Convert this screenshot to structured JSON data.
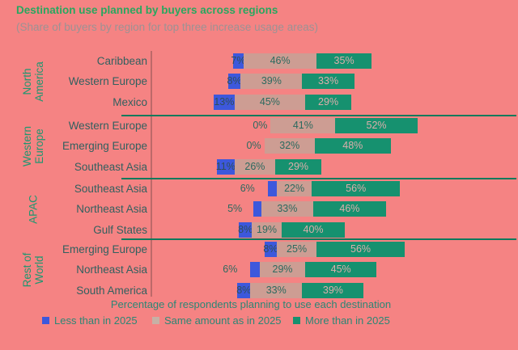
{
  "title": "Destination use planned by buyers across regions",
  "subtitle": "(Share of buyers by region for top three increase usage areas)",
  "colors": {
    "background": "#f58383",
    "less_blue": "#3d58dc",
    "same_tan": "#cd9d93",
    "more_teal": "#16916f",
    "title_green": "#29a75f",
    "subtitle_gray": "#9c9294",
    "category_text": "#31605f",
    "group_text": "#1d9770",
    "label_on_tan": "#2b6a5f",
    "label_on_teal": "#dcaeab",
    "label_on_blue": "#2f4e57",
    "separator": "#0d7a5c",
    "legend_text": "#2b8775",
    "legend_tan_swatch": "#c7b0a5"
  },
  "chart_data": {
    "type": "bar",
    "variant": "horizontal-diverging-stacked",
    "title": "Destination use planned by buyers across regions",
    "subtitle": "(Share of buyers by region for top three increase usage areas)",
    "xlabel": "Percentage of respondents planning to use each destination",
    "unit": "%",
    "series_names": [
      "Less than in 2025",
      "Same amount as in 2025",
      "More than in 2025"
    ],
    "groups": [
      {
        "region": "North America",
        "region_lines": [
          "North",
          "America"
        ],
        "rows": [
          {
            "label": "Caribbean",
            "less": 7,
            "same": 46,
            "more": 35
          },
          {
            "label": "Western Europe",
            "less": 8,
            "same": 39,
            "more": 33
          },
          {
            "label": "Mexico",
            "less": 13,
            "same": 45,
            "more": 29
          }
        ]
      },
      {
        "region": "Western Europe",
        "region_lines": [
          "Western",
          "Europe"
        ],
        "rows": [
          {
            "label": "Western Europe",
            "less": 0,
            "same": 41,
            "more": 52
          },
          {
            "label": "Emerging Europe",
            "less": 0,
            "same": 32,
            "more": 48
          },
          {
            "label": "Southeast Asia",
            "less": 11,
            "same": 26,
            "more": 29
          }
        ]
      },
      {
        "region": "APAC",
        "region_lines": [
          "APAC"
        ],
        "rows": [
          {
            "label": "Southeast Asia",
            "less": 6,
            "same": 22,
            "more": 56
          },
          {
            "label": "Northeast Asia",
            "less": 5,
            "same": 33,
            "more": 46
          },
          {
            "label": "Gulf States",
            "less": 8,
            "same": 19,
            "more": 40
          }
        ]
      },
      {
        "region": "Rest of World",
        "region_lines": [
          "Rest of",
          "World"
        ],
        "rows": [
          {
            "label": "Emerging Europe",
            "less": 8,
            "same": 25,
            "more": 56
          },
          {
            "label": "Northeast Asia",
            "less": 6,
            "same": 29,
            "more": 45
          },
          {
            "label": "South America",
            "less": 8,
            "same": 33,
            "more": 39
          }
        ]
      }
    ],
    "legend_position": "bottom",
    "grid": false
  },
  "legend": {
    "items": [
      {
        "label": "Less than in 2025",
        "color_key": "less_blue"
      },
      {
        "label": "Same amount as in 2025",
        "color_key": "legend_tan_swatch"
      },
      {
        "label": "More than in 2025",
        "color_key": "more_teal"
      }
    ]
  }
}
